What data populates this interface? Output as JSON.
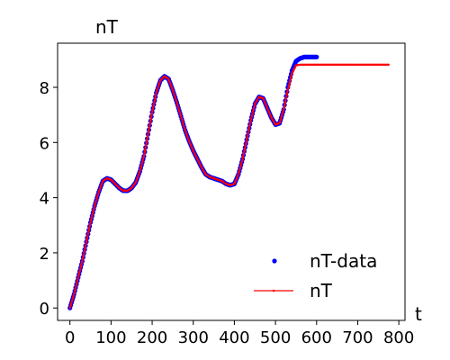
{
  "chart_data": {
    "type": "line",
    "title": "",
    "xlabel": "t",
    "ylabel": "nT",
    "xlim": [
      -30,
      815
    ],
    "ylim": [
      -0.45,
      9.6
    ],
    "xticks": [
      0,
      100,
      200,
      300,
      400,
      500,
      600,
      700,
      800
    ],
    "yticks": [
      0,
      2,
      4,
      6,
      8
    ],
    "grid": false,
    "legend_position": "lower-right",
    "series": [
      {
        "name": "nT-data",
        "style": "dots",
        "color": "#0000ff",
        "x": [
          0,
          10,
          20,
          30,
          40,
          50,
          60,
          70,
          80,
          90,
          100,
          110,
          120,
          130,
          140,
          150,
          160,
          170,
          180,
          190,
          200,
          210,
          220,
          230,
          240,
          250,
          260,
          270,
          280,
          290,
          300,
          310,
          320,
          330,
          340,
          350,
          360,
          370,
          380,
          390,
          400,
          410,
          420,
          430,
          440,
          450,
          460,
          470,
          480,
          490,
          500,
          510,
          520,
          530,
          540,
          550,
          560,
          570,
          580,
          590,
          600
        ],
        "y": [
          0.0,
          0.5,
          1.1,
          1.7,
          2.4,
          3.1,
          3.7,
          4.2,
          4.6,
          4.7,
          4.65,
          4.5,
          4.35,
          4.25,
          4.25,
          4.35,
          4.55,
          4.95,
          5.5,
          6.3,
          7.1,
          7.8,
          8.25,
          8.4,
          8.3,
          7.9,
          7.45,
          6.95,
          6.45,
          6.05,
          5.7,
          5.4,
          5.1,
          4.85,
          4.75,
          4.7,
          4.65,
          4.6,
          4.5,
          4.45,
          4.5,
          4.85,
          5.4,
          6.1,
          6.8,
          7.4,
          7.65,
          7.6,
          7.25,
          6.9,
          6.65,
          6.7,
          7.2,
          8.0,
          8.6,
          8.95,
          9.05,
          9.1,
          9.1,
          9.1,
          9.1
        ]
      },
      {
        "name": "nT",
        "style": "line-with-dots",
        "color": "#ff0000",
        "x": [
          0,
          10,
          20,
          30,
          40,
          50,
          60,
          70,
          80,
          90,
          100,
          110,
          120,
          130,
          140,
          150,
          160,
          170,
          180,
          190,
          200,
          210,
          220,
          230,
          240,
          250,
          260,
          270,
          280,
          290,
          300,
          310,
          320,
          330,
          340,
          350,
          360,
          370,
          380,
          390,
          400,
          410,
          420,
          430,
          440,
          450,
          460,
          470,
          480,
          490,
          500,
          510,
          520,
          530,
          540,
          550,
          560,
          570,
          580,
          590,
          600,
          620,
          640,
          660,
          680,
          700,
          720,
          740,
          760,
          775
        ],
        "y": [
          0.0,
          0.5,
          1.1,
          1.7,
          2.4,
          3.1,
          3.7,
          4.2,
          4.6,
          4.7,
          4.65,
          4.5,
          4.35,
          4.25,
          4.25,
          4.35,
          4.55,
          4.95,
          5.5,
          6.3,
          7.1,
          7.8,
          8.25,
          8.4,
          8.3,
          7.9,
          7.45,
          6.95,
          6.45,
          6.05,
          5.7,
          5.4,
          5.1,
          4.85,
          4.75,
          4.7,
          4.65,
          4.6,
          4.5,
          4.45,
          4.5,
          4.85,
          5.4,
          6.1,
          6.8,
          7.4,
          7.65,
          7.6,
          7.25,
          6.9,
          6.65,
          6.7,
          7.2,
          7.9,
          8.5,
          8.8,
          8.82,
          8.82,
          8.82,
          8.82,
          8.82,
          8.82,
          8.82,
          8.82,
          8.82,
          8.82,
          8.82,
          8.82,
          8.82,
          8.82
        ]
      }
    ]
  }
}
